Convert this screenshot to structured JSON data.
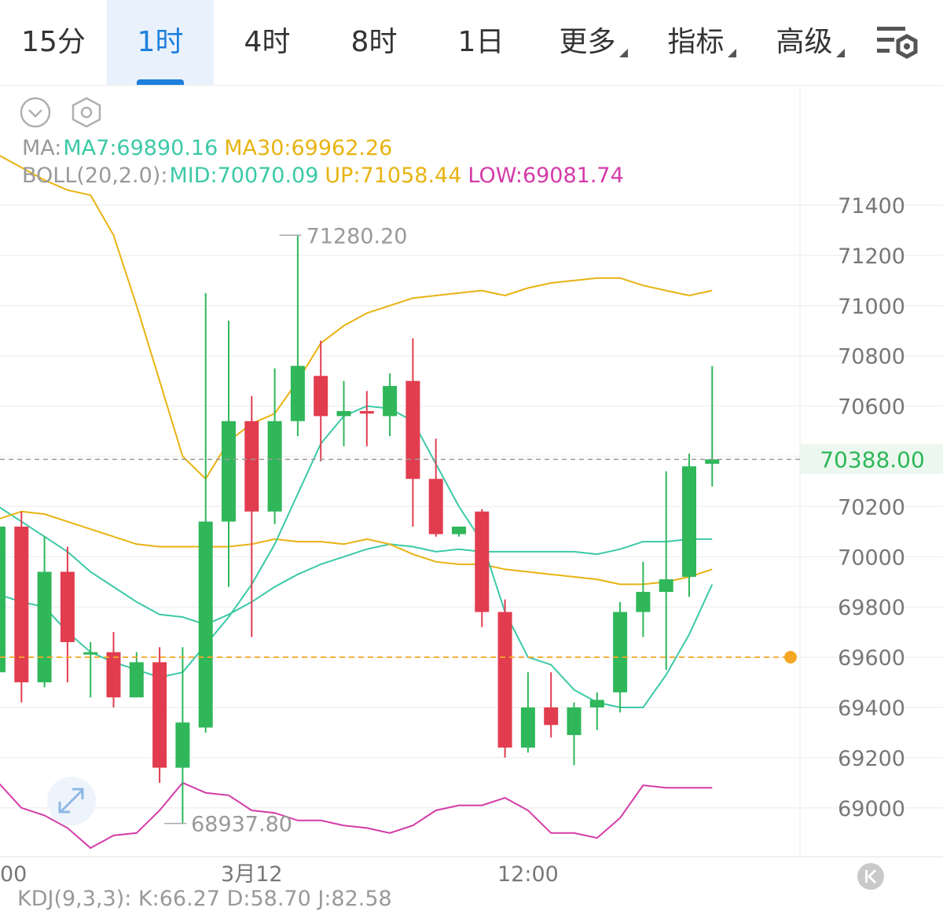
{
  "tabs": [
    {
      "label": "15分",
      "active": false,
      "dropdown": false
    },
    {
      "label": "1时",
      "active": true,
      "dropdown": false
    },
    {
      "label": "4时",
      "active": false,
      "dropdown": false
    },
    {
      "label": "8时",
      "active": false,
      "dropdown": false
    },
    {
      "label": "1日",
      "active": false,
      "dropdown": false
    },
    {
      "label": "更多",
      "active": false,
      "dropdown": true
    },
    {
      "label": "指标",
      "active": false,
      "dropdown": true
    },
    {
      "label": "高级",
      "active": false,
      "dropdown": true
    }
  ],
  "icons": {
    "settings": "chart-settings-icon",
    "collapse": "chevron-down-circle-icon",
    "hex_settings": "hexagon-settings-icon",
    "expand": "expand-arrows-icon",
    "jump_to_latest": "jump-to-latest-icon"
  },
  "legend": {
    "ma_prefix": "MA:",
    "ma7": "MA7:69890.16",
    "ma30": "MA30:69962.26",
    "boll_prefix": "BOLL(20,2.0):",
    "mid": "MID:70070.09",
    "up": "UP:71058.44",
    "low": "LOW:69081.74"
  },
  "kdj_text": "KDJ(9,3,3): K:66.27 D:58.70 J:82.58",
  "colors": {
    "up_candle": "#2fb75a",
    "down_candle": "#e23d4f",
    "ma7": "#3bc9a7",
    "ma30": "#e8b312",
    "boll_mid": "#3bc9a7",
    "boll_up": "#e8b312",
    "boll_low": "#d43ba8",
    "accent": "#1e7fdc",
    "price_tag_bg": "#ecf8ef",
    "price_tag_text": "#2fb75a",
    "alert": "#f5a623"
  },
  "chart_data": {
    "type": "candlestick",
    "interval": "1时",
    "y_ticks": [
      71400,
      71200,
      71000,
      70800,
      70600,
      70200,
      70000,
      69800,
      69600,
      69400,
      69200,
      69000
    ],
    "y_range": [
      68840,
      71520
    ],
    "x_tick_labels": [
      {
        "label": "00",
        "at_index": 0
      },
      {
        "label": "3月12",
        "at_index": 11
      },
      {
        "label": "12:00",
        "at_index": 23
      }
    ],
    "current_price": 70388.0,
    "alert_price": 69600,
    "high_marker": {
      "value": "71280.20",
      "at_index": 12
    },
    "low_marker": {
      "value": "68937.80",
      "at_index": 7
    },
    "candles": [
      {
        "o": 69540,
        "h": 70140,
        "l": 69440,
        "c": 70120
      },
      {
        "o": 70120,
        "h": 70180,
        "l": 69420,
        "c": 69500
      },
      {
        "o": 69500,
        "h": 70080,
        "l": 69480,
        "c": 69940
      },
      {
        "o": 69940,
        "h": 70040,
        "l": 69500,
        "c": 69660
      },
      {
        "o": 69620,
        "h": 69660,
        "l": 69440,
        "c": 69620
      },
      {
        "o": 69620,
        "h": 69700,
        "l": 69400,
        "c": 69440
      },
      {
        "o": 69440,
        "h": 69620,
        "l": 69440,
        "c": 69580
      },
      {
        "o": 69580,
        "h": 69640,
        "l": 69100,
        "c": 69160
      },
      {
        "o": 69160,
        "h": 69640,
        "l": 68937.8,
        "c": 69340
      },
      {
        "o": 69320,
        "h": 71050,
        "l": 69300,
        "c": 70140
      },
      {
        "o": 70140,
        "h": 70940,
        "l": 69880,
        "c": 70540
      },
      {
        "o": 70540,
        "h": 70640,
        "l": 69680,
        "c": 70180
      },
      {
        "o": 70180,
        "h": 70750,
        "l": 70130,
        "c": 70540
      },
      {
        "o": 70540,
        "h": 71280.2,
        "l": 70480,
        "c": 70760
      },
      {
        "o": 70720,
        "h": 70860,
        "l": 70380,
        "c": 70560
      },
      {
        "o": 70560,
        "h": 70700,
        "l": 70440,
        "c": 70580
      },
      {
        "o": 70580,
        "h": 70660,
        "l": 70440,
        "c": 70570
      },
      {
        "o": 70560,
        "h": 70730,
        "l": 70480,
        "c": 70680
      },
      {
        "o": 70700,
        "h": 70870,
        "l": 70120,
        "c": 70310
      },
      {
        "o": 70310,
        "h": 70470,
        "l": 70080,
        "c": 70090
      },
      {
        "o": 70090,
        "h": 70120,
        "l": 70080,
        "c": 70120
      },
      {
        "o": 70180,
        "h": 70190,
        "l": 69720,
        "c": 69780
      },
      {
        "o": 69780,
        "h": 69830,
        "l": 69200,
        "c": 69240
      },
      {
        "o": 69240,
        "h": 69540,
        "l": 69220,
        "c": 69400
      },
      {
        "o": 69400,
        "h": 69540,
        "l": 69280,
        "c": 69330
      },
      {
        "o": 69290,
        "h": 69420,
        "l": 69170,
        "c": 69400
      },
      {
        "o": 69400,
        "h": 69460,
        "l": 69310,
        "c": 69430
      },
      {
        "o": 69460,
        "h": 69820,
        "l": 69380,
        "c": 69780
      },
      {
        "o": 69780,
        "h": 69980,
        "l": 69680,
        "c": 69860
      },
      {
        "o": 69860,
        "h": 70340,
        "l": 69550,
        "c": 69910
      },
      {
        "o": 69920,
        "h": 70410,
        "l": 69840,
        "c": 70360
      },
      {
        "o": 70370,
        "h": 70760,
        "l": 70280,
        "c": 70388
      }
    ],
    "series": [
      {
        "key": "boll_up",
        "values": [
          71600,
          71550,
          71500,
          71460,
          71440,
          71280,
          71000,
          70700,
          70400,
          70310,
          70460,
          70530,
          70570,
          70700,
          70850,
          70920,
          70970,
          71000,
          71030,
          71040,
          71050,
          71060,
          71040,
          71070,
          71090,
          71100,
          71110,
          71110,
          71080,
          71060,
          71040,
          71060
        ]
      },
      {
        "key": "boll_low",
        "values": [
          69100,
          69000,
          68970,
          68920,
          68840,
          68890,
          68900,
          68990,
          69100,
          69060,
          69050,
          68990,
          68980,
          68950,
          68950,
          68930,
          68920,
          68900,
          68930,
          68990,
          69010,
          69010,
          69040,
          68990,
          68900,
          68900,
          68880,
          68960,
          69090,
          69080,
          69080,
          69080
        ]
      },
      {
        "key": "boll_mid",
        "values": [
          70200,
          70140,
          70080,
          70020,
          69940,
          69880,
          69820,
          69770,
          69760,
          69730,
          69770,
          69820,
          69880,
          69930,
          69970,
          70000,
          70030,
          70050,
          70040,
          70020,
          70030,
          70020,
          70020,
          70020,
          70020,
          70020,
          70010,
          70030,
          70060,
          70060,
          70070,
          70070
        ]
      },
      {
        "key": "ma30",
        "values": [
          70150,
          70180,
          70170,
          70140,
          70110,
          70080,
          70050,
          70040,
          70040,
          70040,
          70040,
          70050,
          70070,
          70060,
          70060,
          70050,
          70070,
          70050,
          70010,
          69980,
          69970,
          69970,
          69950,
          69940,
          69930,
          69920,
          69910,
          69890,
          69890,
          69900,
          69920,
          69950
        ]
      },
      {
        "key": "ma7",
        "values": [
          69850,
          69820,
          69800,
          69700,
          69620,
          69580,
          69550,
          69520,
          69540,
          69650,
          69760,
          69890,
          70050,
          70250,
          70450,
          70560,
          70600,
          70590,
          70540,
          70370,
          70200,
          70060,
          69780,
          69600,
          69570,
          69470,
          69420,
          69400,
          69400,
          69530,
          69690,
          69890
        ]
      }
    ]
  }
}
